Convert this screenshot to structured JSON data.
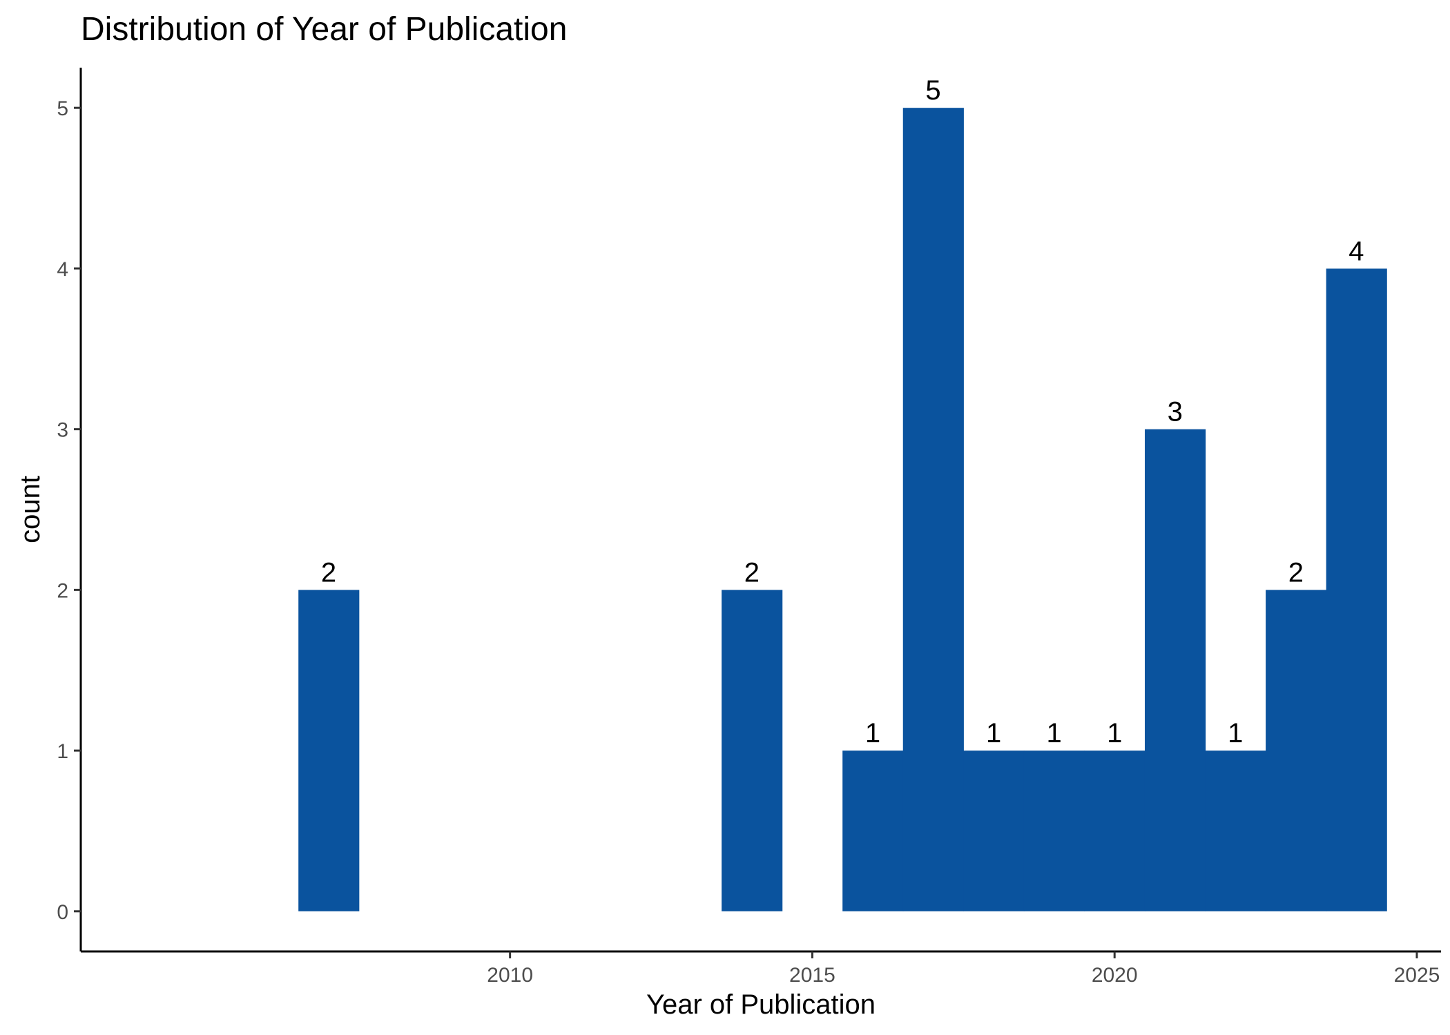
{
  "chart_data": {
    "type": "bar",
    "title": "Distribution of Year of Publication",
    "xlabel": "Year of Publication",
    "ylabel": "count",
    "x": [
      2007,
      2014,
      2016,
      2017,
      2018,
      2019,
      2020,
      2021,
      2022,
      2023,
      2024
    ],
    "values": [
      2,
      2,
      1,
      5,
      1,
      1,
      1,
      3,
      1,
      2,
      4
    ],
    "bin_width": 1,
    "xlim": [
      2002.9,
      2025.4
    ],
    "ylim": [
      -0.25,
      5.25
    ],
    "x_ticks": [
      2010,
      2015,
      2020,
      2025
    ],
    "y_ticks": [
      0,
      1,
      2,
      3,
      4,
      5
    ],
    "data_labels": true,
    "grid": false,
    "bar_color": "#0A539E"
  }
}
